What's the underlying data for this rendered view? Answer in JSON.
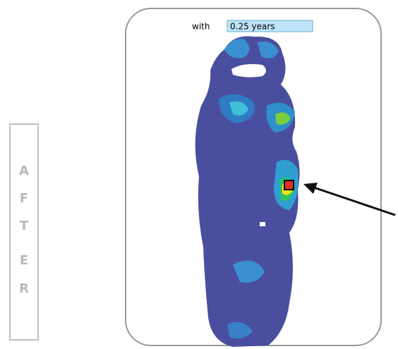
{
  "caption": {
    "prefix": "with",
    "highlight": "0.25 years"
  },
  "side_label": {
    "letters": [
      "A",
      "F",
      "T",
      "E",
      "R"
    ]
  }
}
